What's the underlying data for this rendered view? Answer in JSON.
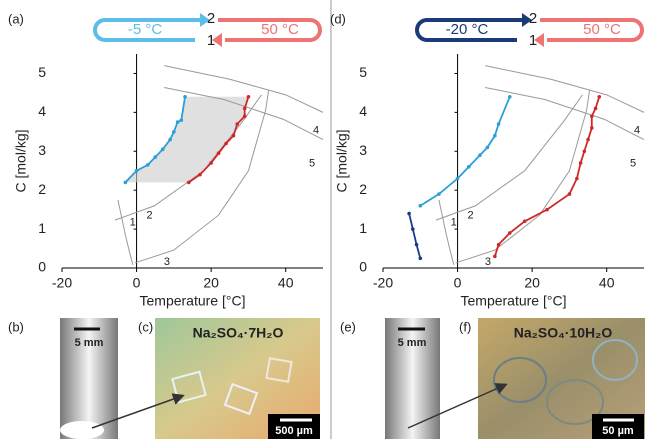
{
  "chart_data": [
    {
      "type": "line",
      "label": "(a)",
      "xlabel": "Temperature [°C]",
      "ylabel": "C [mol/kg]",
      "xlim": [
        -20,
        50
      ],
      "ylim": [
        0,
        5.5
      ],
      "xticks": [
        -20,
        0,
        20,
        40
      ],
      "yticks": [
        0,
        1,
        2,
        3,
        4,
        5
      ],
      "region": true,
      "banner": {
        "cold": "-5 °C",
        "hot": "50 °C",
        "top": "2",
        "bottom": "1",
        "cold_color": "#5bbde8",
        "hot_color": "#ee7373"
      },
      "series": [
        {
          "color": "#2a9fd6",
          "x": [
            -3,
            0,
            3,
            5,
            7,
            9,
            10,
            11,
            12,
            13
          ],
          "values": [
            2.2,
            2.5,
            2.65,
            2.85,
            3.05,
            3.3,
            3.5,
            3.75,
            3.8,
            4.4
          ]
        },
        {
          "color": "#d0282a",
          "x": [
            14,
            17,
            20,
            22,
            24,
            26,
            27,
            29,
            29,
            30
          ],
          "values": [
            2.2,
            2.4,
            2.7,
            2.95,
            3.2,
            3.4,
            3.7,
            3.9,
            4.1,
            4.4
          ]
        }
      ],
      "curves": [
        {
          "name": "1",
          "x": [
            -5,
            -4,
            -3,
            -2,
            -1
          ],
          "values": [
            1.75,
            1.3,
            0.85,
            0.45,
            0.08
          ]
        },
        {
          "name": "2",
          "x": [
            -5.8,
            4.8,
            18,
            28.7,
            33.5
          ],
          "values": [
            1.23,
            1.6,
            2.5,
            3.8,
            4.45
          ]
        },
        {
          "name": "3",
          "x": [
            -0.5,
            10,
            22,
            30,
            34.6,
            35.4
          ],
          "values": [
            0.13,
            0.46,
            1.36,
            2.5,
            4.05,
            4.56
          ]
        },
        {
          "name": "4",
          "x": [
            7.4,
            25,
            40,
            50
          ],
          "values": [
            5.2,
            4.85,
            4.45,
            4.0
          ]
        },
        {
          "name": "5",
          "x": [
            7.4,
            23.4,
            39.4,
            50
          ],
          "values": [
            4.64,
            4.33,
            3.82,
            3.3
          ]
        }
      ]
    },
    {
      "type": "line",
      "label": "(d)",
      "xlabel": "Temperature [°C]",
      "ylabel": "C [mol/kg]",
      "xlim": [
        -20,
        50
      ],
      "ylim": [
        0,
        5.5
      ],
      "xticks": [
        -20,
        0,
        20,
        40
      ],
      "yticks": [
        0,
        1,
        2,
        3,
        4,
        5
      ],
      "region": false,
      "banner": {
        "cold": "-20 °C",
        "hot": "50 °C",
        "top": "2",
        "bottom": "1",
        "cold_color": "#1a3a78",
        "hot_color": "#ee7373"
      },
      "series": [
        {
          "color": "#2a9fd6",
          "x": [
            -10,
            -5,
            0,
            3,
            6,
            8,
            10,
            11,
            14
          ],
          "values": [
            1.6,
            1.9,
            2.3,
            2.6,
            2.9,
            3.1,
            3.4,
            3.7,
            4.4
          ]
        },
        {
          "color": "#1a3a8a",
          "x": [
            -13,
            -12,
            -11,
            -10
          ],
          "values": [
            1.4,
            1.0,
            0.6,
            0.25
          ]
        },
        {
          "color": "#d0282a",
          "x": [
            10,
            11,
            14,
            18,
            24,
            30,
            32,
            33,
            34,
            35,
            36,
            36,
            37,
            38
          ],
          "values": [
            0.3,
            0.6,
            0.9,
            1.2,
            1.5,
            1.9,
            2.3,
            2.7,
            3.0,
            3.3,
            3.6,
            3.9,
            4.1,
            4.4
          ]
        }
      ],
      "curves": [
        {
          "name": "1",
          "x": [
            -5,
            -4,
            -3,
            -2,
            -1
          ],
          "values": [
            1.75,
            1.3,
            0.85,
            0.45,
            0.08
          ]
        },
        {
          "name": "2",
          "x": [
            -5.8,
            4.8,
            18,
            28.7,
            33.5
          ],
          "values": [
            1.23,
            1.6,
            2.5,
            3.8,
            4.45
          ]
        },
        {
          "name": "3",
          "x": [
            -0.5,
            10,
            22,
            30,
            34.6,
            35.4
          ],
          "values": [
            0.13,
            0.46,
            1.36,
            2.5,
            4.05,
            4.56
          ]
        },
        {
          "name": "4",
          "x": [
            7.4,
            25,
            40,
            50
          ],
          "values": [
            5.2,
            4.85,
            4.45,
            4.0
          ]
        },
        {
          "name": "5",
          "x": [
            7.4,
            23.4,
            39.4,
            50
          ],
          "values": [
            4.64,
            4.33,
            3.82,
            3.3
          ]
        }
      ]
    }
  ],
  "photos": [
    {
      "label": "(b)",
      "scale": "5 mm"
    },
    {
      "label": "(c)",
      "caption": "Na₂SO₄·7H₂O",
      "scale": "500 µm"
    },
    {
      "label": "(e)",
      "scale": "5 mm"
    },
    {
      "label": "(f)",
      "caption": "Na₂SO₄·10H₂O",
      "scale": "50 µm"
    }
  ]
}
